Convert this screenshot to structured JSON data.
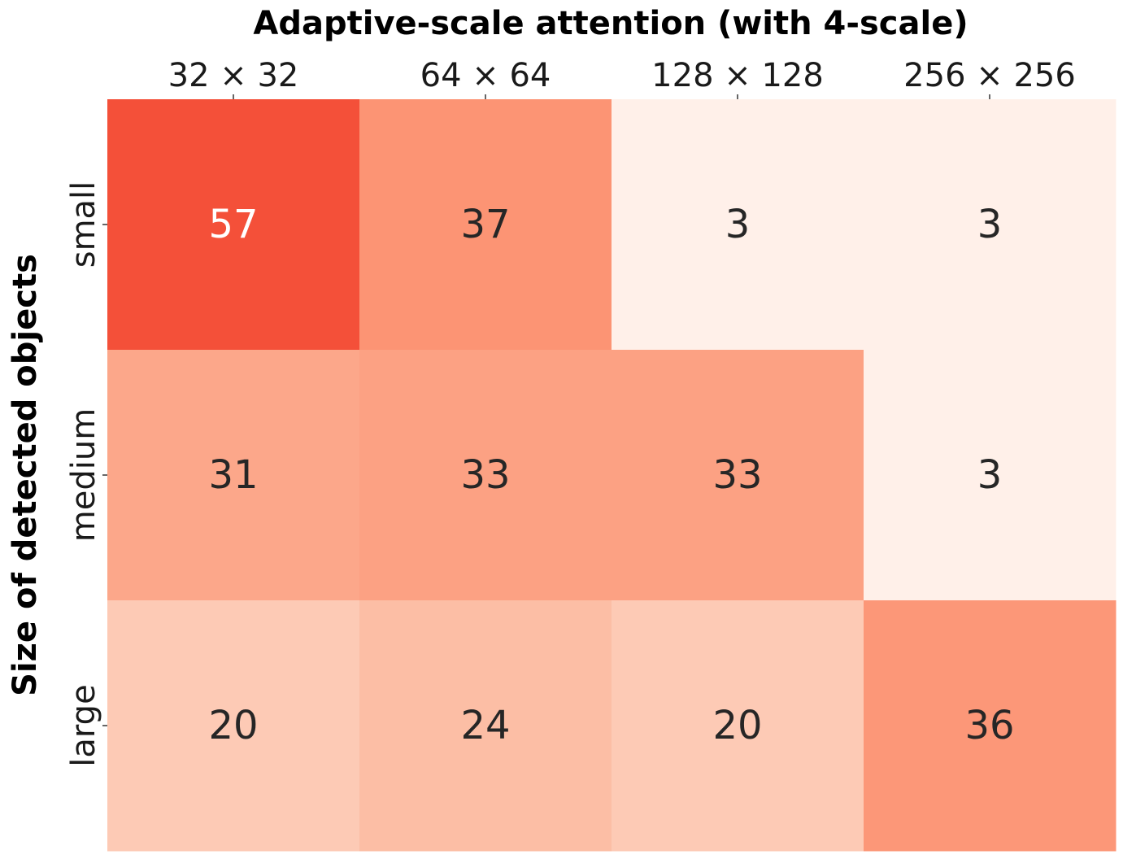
{
  "chart_data": {
    "type": "heatmap",
    "title": "Adaptive-scale attention (with 4-scale)",
    "xlabel": "",
    "ylabel": "Size of detected objects",
    "x_categories": [
      "32 × 32",
      "64 × 64",
      "128 × 128",
      "256 × 256"
    ],
    "y_categories": [
      "small",
      "medium",
      "large"
    ],
    "values": [
      [
        57,
        37,
        3,
        3
      ],
      [
        31,
        33,
        33,
        3
      ],
      [
        20,
        24,
        20,
        36
      ]
    ],
    "colormap": "Reds",
    "color_range": [
      0,
      100
    ],
    "x_axis_position": "top",
    "colorbar": false,
    "grid": false
  }
}
